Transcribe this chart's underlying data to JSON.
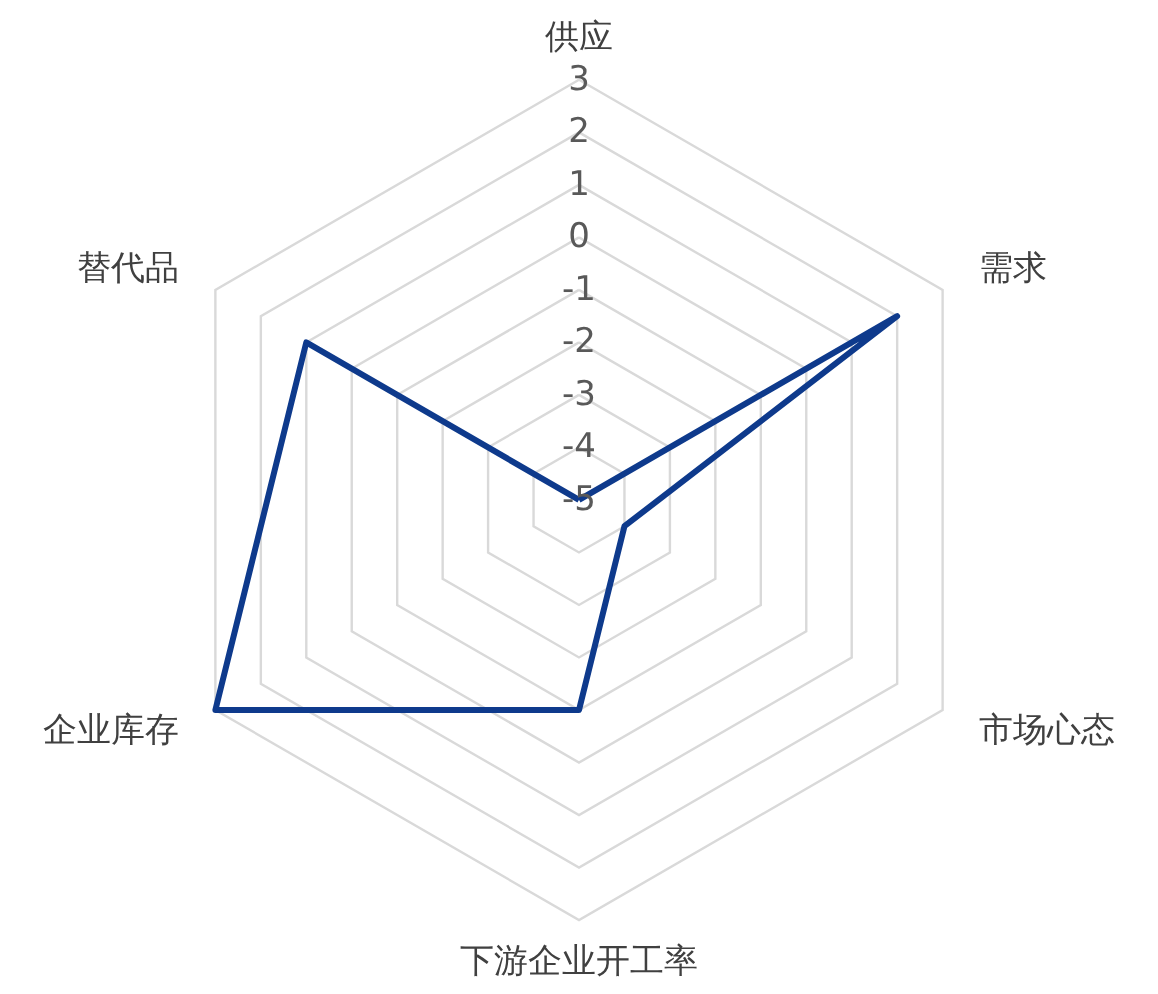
{
  "chart_data": {
    "type": "radar",
    "categories": [
      "供应",
      "需求",
      "市场心态",
      "下游企业开工率",
      "企业库存",
      "替代品"
    ],
    "series": [
      {
        "color": "#0e3a8c",
        "values": [
          -5,
          2,
          -4,
          -1,
          3,
          1
        ]
      }
    ],
    "ylim": [
      -5,
      3
    ],
    "yticks": [
      -5,
      -4,
      -3,
      -2,
      -1,
      0,
      1,
      2,
      3
    ],
    "grid": true,
    "marker": "none",
    "line_style": "solid"
  }
}
